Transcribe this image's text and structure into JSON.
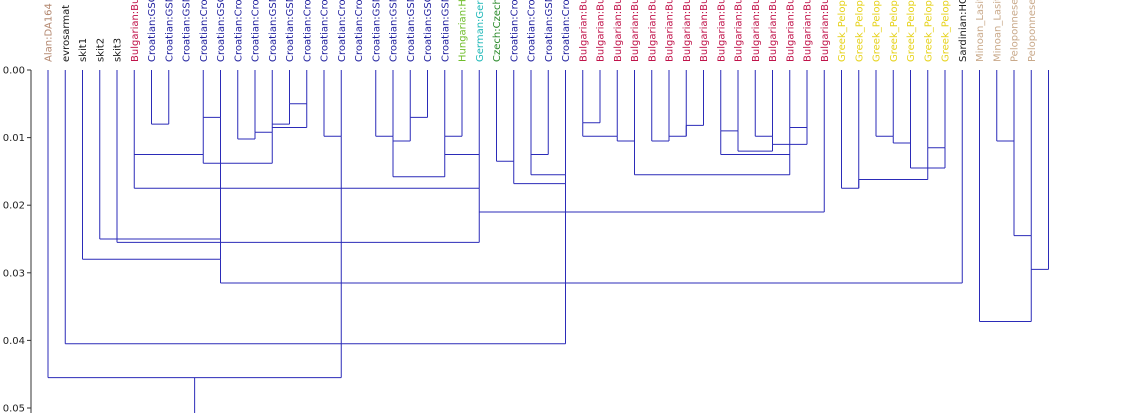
{
  "chart_data": {
    "type": "dendrogram",
    "yaxis": {
      "range": [
        0.0,
        0.05
      ],
      "ticks": [
        0.0,
        0.01,
        0.02,
        0.03,
        0.04,
        0.05
      ],
      "tick_labels": [
        "0.00",
        "0.01",
        "0.02",
        "0.03",
        "0.04",
        "0.05"
      ]
    },
    "colors": {
      "branch": "#2b2bb8",
      "axis": "#333333",
      "alan": "#b3876f",
      "black": "#1a1a1a",
      "bulgarian": "#c0134a",
      "croatian": "#1f1f9e",
      "hungarian": "#6fbd2a",
      "german": "#1fb8b8",
      "czech": "#2a8a2a",
      "greek": "#e6d21a",
      "minoan": "#c9a98a",
      "peloponnese": "#c9a98a"
    },
    "leaves": [
      {
        "label": "Alan:DA164",
        "color": "alan"
      },
      {
        "label": "evrosarmat",
        "color": "black"
      },
      {
        "label": "skit1",
        "color": "black"
      },
      {
        "label": "skit2",
        "color": "black"
      },
      {
        "label": "skit3",
        "color": "black"
      },
      {
        "label": "Bulgarian:Bul",
        "color": "bulgarian"
      },
      {
        "label": "Croatian:GSG",
        "color": "croatian"
      },
      {
        "label": "Croatian:GSN",
        "color": "croatian"
      },
      {
        "label": "Croatian:GSN",
        "color": "croatian"
      },
      {
        "label": "Croatian:Cro",
        "color": "croatian"
      },
      {
        "label": "Croatian:GSG",
        "color": "croatian"
      },
      {
        "label": "Croatian:Cro",
        "color": "croatian"
      },
      {
        "label": "Croatian:Cro",
        "color": "croatian"
      },
      {
        "label": "Croatian:GSN",
        "color": "croatian"
      },
      {
        "label": "Croatian:GSN",
        "color": "croatian"
      },
      {
        "label": "Croatian:Cro",
        "color": "croatian"
      },
      {
        "label": "Croatian:Cro",
        "color": "croatian"
      },
      {
        "label": "Croatian:Cro",
        "color": "croatian"
      },
      {
        "label": "Croatian:Cro",
        "color": "croatian"
      },
      {
        "label": "Croatian:GSN",
        "color": "croatian"
      },
      {
        "label": "Croatian:GSN",
        "color": "croatian"
      },
      {
        "label": "Croatian:GSN",
        "color": "croatian"
      },
      {
        "label": "Croatian:GSG",
        "color": "croatian"
      },
      {
        "label": "Croatian:GSN",
        "color": "croatian"
      },
      {
        "label": "Hungarian:Hu",
        "color": "hungarian"
      },
      {
        "label": "German:Germ",
        "color": "german"
      },
      {
        "label": "Czech:Czech",
        "color": "czech"
      },
      {
        "label": "Croatian:Cro",
        "color": "croatian"
      },
      {
        "label": "Croatian:Cro",
        "color": "croatian"
      },
      {
        "label": "Croatian:GSN",
        "color": "croatian"
      },
      {
        "label": "Croatian:Cro",
        "color": "croatian"
      },
      {
        "label": "Bulgarian:Bul",
        "color": "bulgarian"
      },
      {
        "label": "Bulgarian:Bul",
        "color": "bulgarian"
      },
      {
        "label": "Bulgarian:Bul",
        "color": "bulgarian"
      },
      {
        "label": "Bulgarian:Bul",
        "color": "bulgarian"
      },
      {
        "label": "Bulgarian:Bul",
        "color": "bulgarian"
      },
      {
        "label": "Bulgarian:Bul",
        "color": "bulgarian"
      },
      {
        "label": "Bulgarian:Bul",
        "color": "bulgarian"
      },
      {
        "label": "Bulgarian:Bul",
        "color": "bulgarian"
      },
      {
        "label": "Bulgarian:Bul",
        "color": "bulgarian"
      },
      {
        "label": "Bulgarian:Bul",
        "color": "bulgarian"
      },
      {
        "label": "Bulgarian:Bul",
        "color": "bulgarian"
      },
      {
        "label": "Bulgarian:Bul",
        "color": "bulgarian"
      },
      {
        "label": "Bulgarian:Bul",
        "color": "bulgarian"
      },
      {
        "label": "Bulgarian:Bul",
        "color": "bulgarian"
      },
      {
        "label": "Bulgarian:Bul",
        "color": "bulgarian"
      },
      {
        "label": "Greek_Pelop",
        "color": "greek"
      },
      {
        "label": "Greek_Pelop",
        "color": "greek"
      },
      {
        "label": "Greek_Pelop",
        "color": "greek"
      },
      {
        "label": "Greek_Pelop",
        "color": "greek"
      },
      {
        "label": "Greek_Pelop",
        "color": "greek"
      },
      {
        "label": "Greek_Pelop",
        "color": "greek"
      },
      {
        "label": "Greek_Pelop",
        "color": "greek"
      },
      {
        "label": "Sardinian:HG",
        "color": "black"
      },
      {
        "label": "Minoan_Lasit",
        "color": "minoan"
      },
      {
        "label": "Minoan_Lasit",
        "color": "minoan"
      },
      {
        "label": "Peloponnese",
        "color": "peloponnese"
      },
      {
        "label": "Peloponnese",
        "color": "peloponnese"
      }
    ],
    "merges": [
      [
        6,
        7,
        0.008
      ],
      [
        9,
        10,
        0.007
      ],
      [
        14,
        15,
        0.005
      ],
      [
        13,
        14,
        0.008
      ],
      [
        13,
        15,
        0.0085
      ],
      [
        16,
        17,
        0.0098
      ],
      [
        12,
        13,
        0.0092
      ],
      [
        11,
        12,
        0.0102
      ],
      [
        19,
        20,
        0.0098
      ],
      [
        21,
        22,
        0.007
      ],
      [
        20,
        21,
        0.0105
      ],
      [
        23,
        24,
        0.0098
      ],
      [
        23,
        25,
        0.0125
      ],
      [
        26,
        27,
        0.0135
      ],
      [
        28,
        29,
        0.0125
      ],
      [
        28,
        30,
        0.0155
      ],
      [
        27,
        30,
        0.0168
      ],
      [
        31,
        32,
        0.0078
      ],
      [
        31,
        33,
        0.0098
      ],
      [
        33,
        34,
        0.0105
      ],
      [
        35,
        36,
        0.0105
      ],
      [
        36,
        37,
        0.0098
      ],
      [
        37,
        38,
        0.0082
      ],
      [
        39,
        40,
        0.009
      ],
      [
        41,
        42,
        0.0098
      ],
      [
        43,
        44,
        0.0085
      ],
      [
        42,
        44,
        0.011
      ],
      [
        40,
        42,
        0.012
      ],
      [
        39,
        43,
        0.0125
      ],
      [
        34,
        43,
        0.0155
      ],
      [
        46,
        47,
        0.0175
      ],
      [
        48,
        49,
        0.0098
      ],
      [
        49,
        50,
        0.0108
      ],
      [
        51,
        52,
        0.0115
      ],
      [
        50,
        52,
        0.0145
      ],
      [
        47,
        51,
        0.0162
      ],
      [
        20,
        23,
        0.0158
      ],
      [
        5,
        9,
        0.0125
      ],
      [
        9,
        13,
        0.0138
      ],
      [
        5,
        25,
        0.0175
      ],
      [
        25,
        45,
        0.021
      ],
      [
        4,
        25,
        0.0255
      ],
      [
        3,
        10,
        0.025
      ],
      [
        2,
        10,
        0.028
      ],
      [
        10,
        53,
        0.0315
      ],
      [
        55,
        56,
        0.0105
      ],
      [
        56,
        57,
        0.0245
      ],
      [
        57,
        58,
        0.0295
      ],
      [
        54,
        57,
        0.0372
      ],
      [
        1,
        30,
        0.0405
      ],
      [
        0,
        17,
        0.0455
      ]
    ]
  }
}
